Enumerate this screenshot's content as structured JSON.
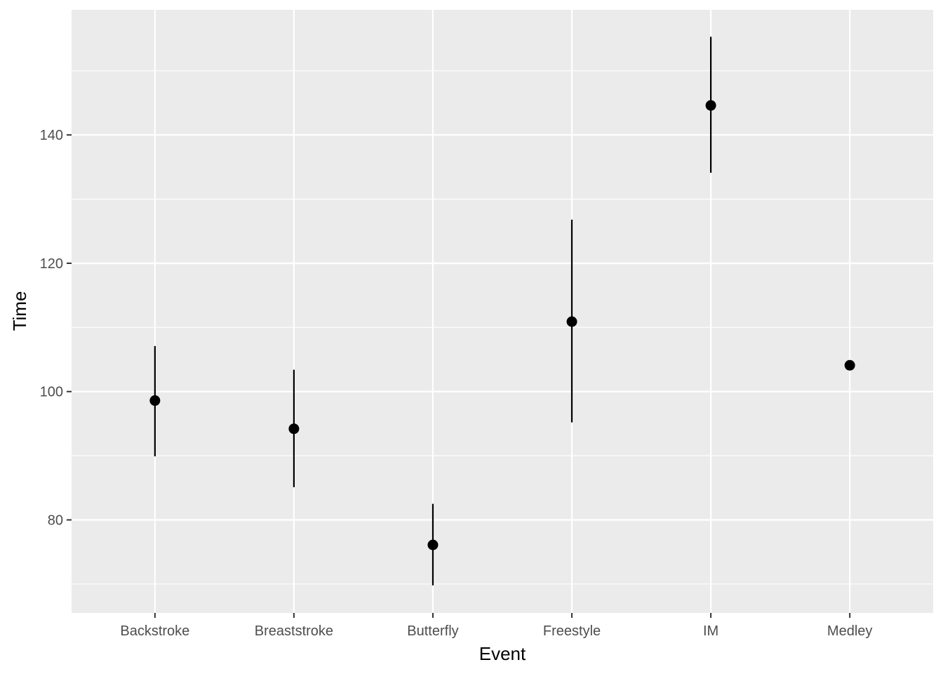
{
  "chart_data": {
    "type": "pointrange",
    "xlabel": "Event",
    "ylabel": "Time",
    "ylim": [
      65.5,
      159.5
    ],
    "y_ticks": [
      80,
      100,
      120,
      140
    ],
    "y_ticks_labeled": [
      "80",
      "100",
      "120",
      "140"
    ],
    "y_minor_gridlines": [
      70,
      90,
      110,
      130,
      150
    ],
    "categories": [
      "Backstroke",
      "Breaststroke",
      "Butterfly",
      "Freestyle",
      "IM",
      "Medley"
    ],
    "means": [
      98.6,
      94.2,
      76.1,
      110.9,
      144.6,
      104.1
    ],
    "lower": [
      89.9,
      85.1,
      69.8,
      95.2,
      134.1,
      104.1
    ],
    "upper": [
      107.1,
      103.4,
      82.5,
      126.8,
      155.3,
      104.1
    ],
    "grid": true,
    "legend": "none",
    "colors": {
      "panel": "#ebebeb",
      "grid": "#ffffff",
      "mark": "#000000",
      "tick_text": "#4d4d4d",
      "tick_mark": "#333333"
    }
  }
}
